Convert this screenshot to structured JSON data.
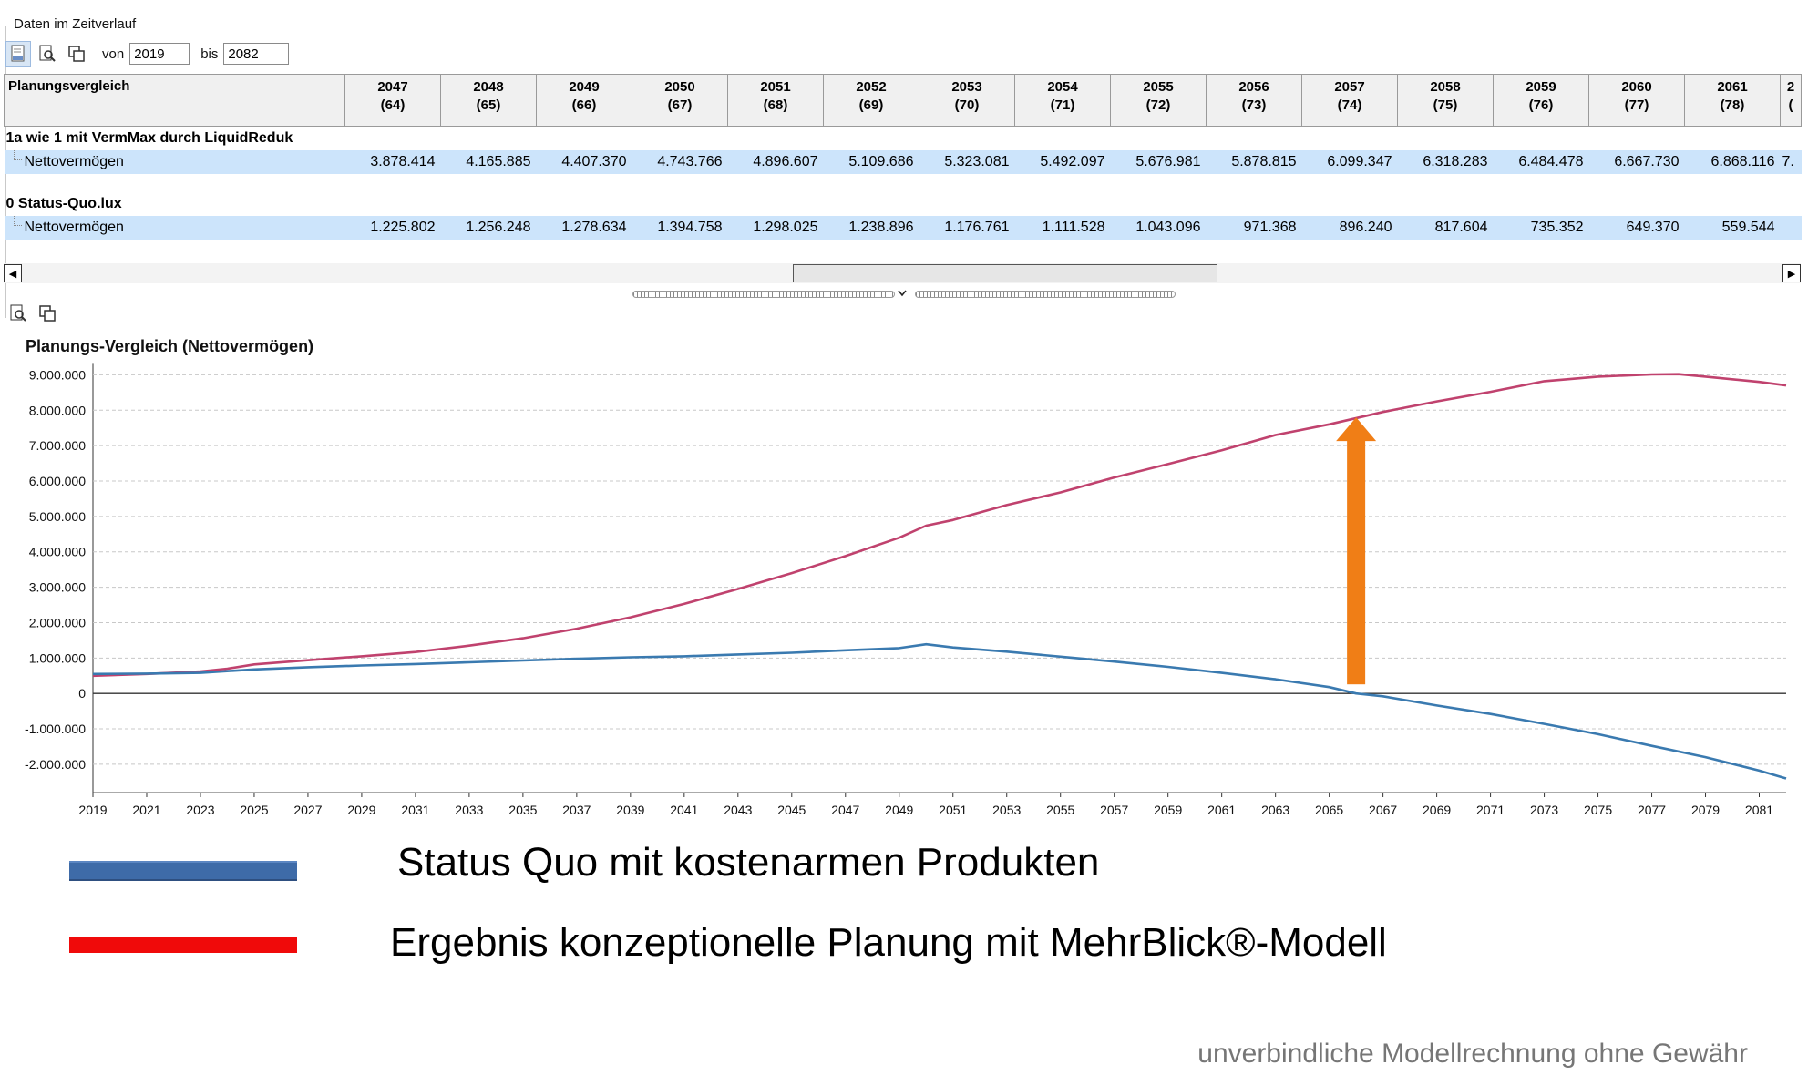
{
  "window": {
    "group_title": "Daten im Zeitverlauf"
  },
  "toolbar": {
    "from_label": "von",
    "from_value": "2019",
    "to_label": "bis",
    "to_value": "2082"
  },
  "table": {
    "header_label": "Planungsvergleich",
    "columns": [
      {
        "year": "2047",
        "age": "(64)"
      },
      {
        "year": "2048",
        "age": "(65)"
      },
      {
        "year": "2049",
        "age": "(66)"
      },
      {
        "year": "2050",
        "age": "(67)"
      },
      {
        "year": "2051",
        "age": "(68)"
      },
      {
        "year": "2052",
        "age": "(69)"
      },
      {
        "year": "2053",
        "age": "(70)"
      },
      {
        "year": "2054",
        "age": "(71)"
      },
      {
        "year": "2055",
        "age": "(72)"
      },
      {
        "year": "2056",
        "age": "(73)"
      },
      {
        "year": "2057",
        "age": "(74)"
      },
      {
        "year": "2058",
        "age": "(75)"
      },
      {
        "year": "2059",
        "age": "(76)"
      },
      {
        "year": "2060",
        "age": "(77)"
      },
      {
        "year": "2061",
        "age": "(78)"
      },
      {
        "year": "2",
        "age": "("
      }
    ],
    "groups": [
      {
        "name": "1a wie 1 mit VermMax durch LiquidReduk",
        "row_label": "Nettovermögen",
        "values": [
          "3.878.414",
          "4.165.885",
          "4.407.370",
          "4.743.766",
          "4.896.607",
          "5.109.686",
          "5.323.081",
          "5.492.097",
          "5.676.981",
          "5.878.815",
          "6.099.347",
          "6.318.283",
          "6.484.478",
          "6.667.730",
          "6.868.116",
          "7."
        ]
      },
      {
        "name": "0 Status-Quo.lux",
        "row_label": "Nettovermögen",
        "values": [
          "1.225.802",
          "1.256.248",
          "1.278.634",
          "1.394.758",
          "1.298.025",
          "1.238.896",
          "1.176.761",
          "1.111.528",
          "1.043.096",
          "971.368",
          "896.240",
          "817.604",
          "735.352",
          "649.370",
          "559.544",
          ""
        ]
      }
    ]
  },
  "chart_data": {
    "type": "line",
    "title": "Planungs-Vergleich (Nettovermögen)",
    "xlabel": "",
    "ylabel": "",
    "x_ticks": [
      "2019",
      "2021",
      "2023",
      "2025",
      "2027",
      "2029",
      "2031",
      "2033",
      "2035",
      "2037",
      "2039",
      "2041",
      "2043",
      "2045",
      "2047",
      "2049",
      "2051",
      "2053",
      "2055",
      "2057",
      "2059",
      "2061",
      "2063",
      "2065",
      "2067",
      "2069",
      "2071",
      "2073",
      "2075",
      "2077",
      "2079",
      "2081"
    ],
    "y_ticks": [
      "9.000.000",
      "8.000.000",
      "7.000.000",
      "6.000.000",
      "5.000.000",
      "4.000.000",
      "3.000.000",
      "2.000.000",
      "1.000.000",
      "0",
      "-1.000.000",
      "-2.000.000"
    ],
    "xlim": [
      2019,
      2082
    ],
    "ylim": [
      -2800000,
      9500000
    ],
    "grid": true,
    "series": [
      {
        "color": "#c0426e",
        "x": [
          2019,
          2021,
          2023,
          2024,
          2025,
          2027,
          2029,
          2031,
          2033,
          2035,
          2037,
          2039,
          2041,
          2043,
          2045,
          2047,
          2049,
          2050,
          2051,
          2053,
          2055,
          2057,
          2059,
          2061,
          2063,
          2065,
          2067,
          2069,
          2071,
          2073,
          2075,
          2077,
          2078,
          2079,
          2081,
          2082
        ],
        "y": [
          500000,
          550000,
          620000,
          700000,
          820000,
          940000,
          1050000,
          1170000,
          1350000,
          1560000,
          1830000,
          2150000,
          2530000,
          2950000,
          3400000,
          3880000,
          4400000,
          4740000,
          4900000,
          5320000,
          5680000,
          6100000,
          6480000,
          6870000,
          7300000,
          7600000,
          7950000,
          8250000,
          8520000,
          8820000,
          8950000,
          9010000,
          9020000,
          8950000,
          8800000,
          8700000
        ]
      },
      {
        "color": "#3a7ab0",
        "x": [
          2019,
          2021,
          2023,
          2025,
          2027,
          2029,
          2031,
          2033,
          2035,
          2037,
          2039,
          2041,
          2043,
          2045,
          2047,
          2049,
          2050,
          2051,
          2053,
          2055,
          2057,
          2059,
          2061,
          2063,
          2065,
          2066,
          2067,
          2069,
          2071,
          2073,
          2075,
          2077,
          2079,
          2081,
          2082
        ],
        "y": [
          550000,
          560000,
          580000,
          680000,
          740000,
          790000,
          830000,
          880000,
          930000,
          980000,
          1020000,
          1050000,
          1100000,
          1150000,
          1220000,
          1280000,
          1390000,
          1300000,
          1180000,
          1040000,
          900000,
          750000,
          580000,
          400000,
          180000,
          0,
          -80000,
          -340000,
          -580000,
          -860000,
          -1150000,
          -1480000,
          -1800000,
          -2180000,
          -2400000
        ]
      }
    ],
    "annotation_arrow": {
      "color": "#f07e16",
      "x": 2066,
      "y_from": 0,
      "y_to": 7800000
    }
  },
  "legend": {
    "items": [
      {
        "label": "Status Quo mit kostenarmen Produkten",
        "color": "#3e6ba8"
      },
      {
        "label": "Ergebnis konzeptionelle Planung mit MehrBlick®-Modell",
        "color": "#f00a0a"
      }
    ]
  },
  "footer": {
    "disclaimer": "unverbindliche Modellrechnung ohne Gewähr"
  }
}
